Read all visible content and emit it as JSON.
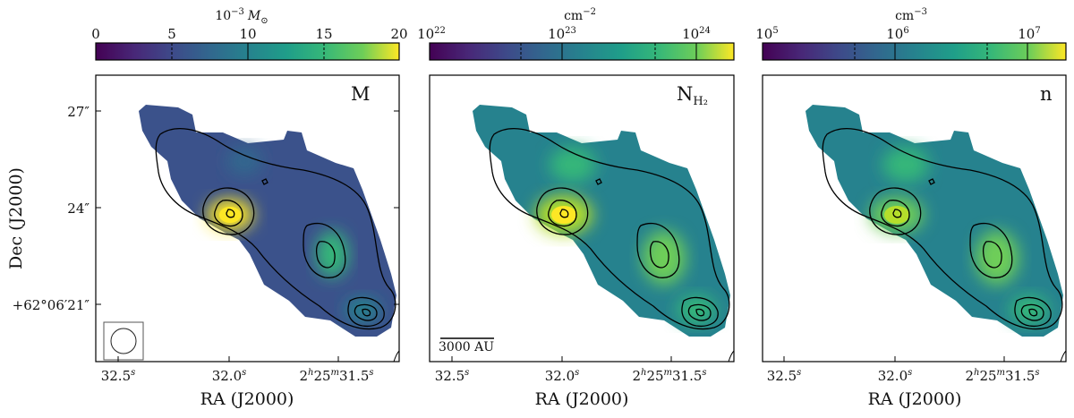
{
  "panels": [
    {
      "label": "M",
      "label_sub": "",
      "colorbar": {
        "unit_base": "10",
        "unit_exp": "−3",
        "unit_rest": "M",
        "unit_rest_sub": "⊙",
        "ticks": [
          {
            "base": "0",
            "exp": ""
          },
          {
            "base": "5",
            "exp": ""
          },
          {
            "base": "10",
            "exp": ""
          },
          {
            "base": "15",
            "exp": ""
          },
          {
            "base": "20",
            "exp": ""
          }
        ]
      },
      "y_axis": {
        "title": "Dec (J2000)",
        "ticks": [
          {
            "text": "27″",
            "exp": ""
          },
          {
            "text": "24″",
            "exp": ""
          },
          {
            "text": "+62°06′21″",
            "exp": ""
          }
        ]
      },
      "x_axis": {
        "title": "RA (J2000)",
        "ticks": [
          {
            "parts": [
              [
                "32.5",
                "s"
              ]
            ]
          },
          {
            "parts": [
              [
                "32.0",
                "s"
              ]
            ]
          },
          {
            "parts": [
              [
                "2",
                "h"
              ],
              [
                "25",
                "m"
              ],
              [
                "31.5",
                "s"
              ]
            ]
          }
        ]
      },
      "beam": true,
      "scale_bar": ""
    },
    {
      "label": "N",
      "label_sub": "H₂",
      "colorbar": {
        "unit_base": "cm",
        "unit_exp": "−2",
        "unit_rest": "",
        "unit_rest_sub": "",
        "ticks": [
          {
            "base": "10",
            "exp": "22"
          },
          {
            "base": "10",
            "exp": "23"
          },
          {
            "base": "10",
            "exp": "24"
          }
        ]
      },
      "x_axis": {
        "title": "RA (J2000)",
        "ticks": [
          {
            "parts": [
              [
                "32.5",
                "s"
              ]
            ]
          },
          {
            "parts": [
              [
                "32.0",
                "s"
              ]
            ]
          },
          {
            "parts": [
              [
                "2",
                "h"
              ],
              [
                "25",
                "m"
              ],
              [
                "31.5",
                "s"
              ]
            ]
          }
        ]
      },
      "beam": false,
      "scale_bar": "3000 AU"
    },
    {
      "label": "n",
      "label_sub": "",
      "colorbar": {
        "unit_base": "cm",
        "unit_exp": "−3",
        "unit_rest": "",
        "unit_rest_sub": "",
        "ticks": [
          {
            "base": "10",
            "exp": "5"
          },
          {
            "base": "10",
            "exp": "6"
          },
          {
            "base": "10",
            "exp": "7"
          }
        ]
      },
      "x_axis": {
        "title": "RA (J2000)",
        "ticks": [
          {
            "parts": [
              [
                "32.5",
                "s"
              ]
            ]
          },
          {
            "parts": [
              [
                "32.0",
                "s"
              ]
            ]
          },
          {
            "parts": [
              [
                "2",
                "h"
              ],
              [
                "25",
                "m"
              ],
              [
                "31.5",
                "s"
              ]
            ]
          }
        ]
      },
      "beam": false,
      "scale_bar": ""
    }
  ],
  "colors": {
    "colormap": "viridis",
    "contour": "#000000",
    "frame": "#000000",
    "background": "#ffffff"
  }
}
